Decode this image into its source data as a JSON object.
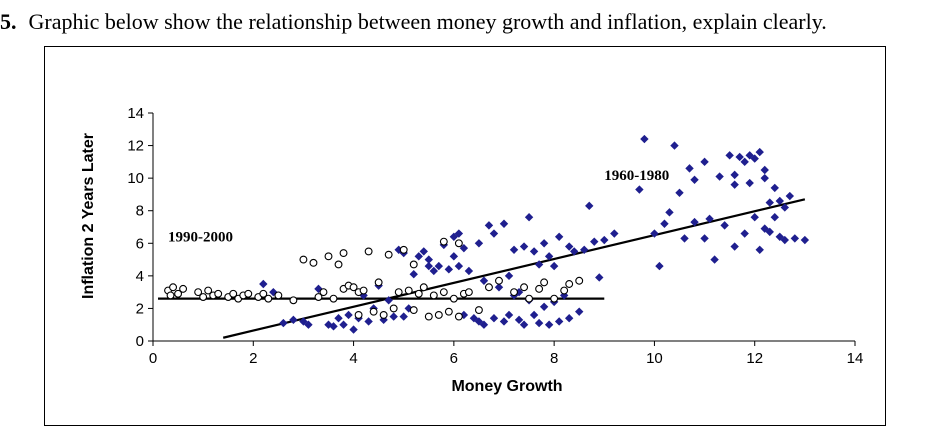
{
  "question": {
    "number": "5.",
    "text": "Graphic below show the relationship between money growth and inflation, explain clearly."
  },
  "chart_data": {
    "type": "scatter",
    "xlabel": "Money Growth",
    "ylabel": "Inflation 2 Years Later",
    "xlim": [
      0,
      14
    ],
    "ylim": [
      0,
      14
    ],
    "xticks": [
      0,
      2,
      4,
      6,
      8,
      10,
      12,
      14
    ],
    "yticks": [
      0,
      2,
      4,
      6,
      8,
      10,
      12,
      14
    ],
    "grid": false,
    "colors": {
      "series_1960_1980": "#1f1f8f",
      "series_1990_2000_fill": "#ffffff",
      "series_1990_2000_stroke": "#000000",
      "trend": "#000000"
    },
    "annotations": [
      {
        "text": "1990-2000",
        "x": 0.3,
        "y": 6.1
      },
      {
        "text": "1960-1980",
        "x": 9.0,
        "y": 9.9
      }
    ],
    "series": [
      {
        "marker": "diamond",
        "points": [
          [
            2.2,
            3.5
          ],
          [
            2.4,
            3.0
          ],
          [
            2.6,
            1.1
          ],
          [
            2.8,
            1.3
          ],
          [
            3.0,
            1.2
          ],
          [
            3.1,
            1.0
          ],
          [
            3.3,
            3.2
          ],
          [
            3.5,
            1.0
          ],
          [
            3.6,
            0.9
          ],
          [
            3.7,
            1.4
          ],
          [
            3.8,
            1.0
          ],
          [
            3.9,
            1.6
          ],
          [
            4.0,
            0.7
          ],
          [
            4.1,
            1.4
          ],
          [
            4.2,
            2.8
          ],
          [
            4.3,
            1.2
          ],
          [
            4.4,
            2.0
          ],
          [
            4.5,
            3.4
          ],
          [
            4.6,
            1.3
          ],
          [
            4.7,
            2.5
          ],
          [
            4.8,
            1.5
          ],
          [
            4.9,
            5.6
          ],
          [
            5.0,
            5.4
          ],
          [
            5.0,
            1.5
          ],
          [
            5.1,
            2.0
          ],
          [
            5.2,
            4.1
          ],
          [
            5.3,
            5.2
          ],
          [
            5.4,
            5.5
          ],
          [
            5.5,
            5.0
          ],
          [
            5.5,
            4.6
          ],
          [
            5.6,
            4.3
          ],
          [
            5.7,
            4.6
          ],
          [
            5.8,
            5.9
          ],
          [
            5.9,
            4.4
          ],
          [
            6.0,
            6.4
          ],
          [
            6.0,
            5.2
          ],
          [
            6.1,
            4.6
          ],
          [
            6.1,
            6.6
          ],
          [
            6.2,
            5.7
          ],
          [
            6.2,
            1.6
          ],
          [
            6.3,
            4.3
          ],
          [
            6.4,
            1.4
          ],
          [
            6.5,
            6.0
          ],
          [
            6.5,
            1.2
          ],
          [
            6.6,
            3.7
          ],
          [
            6.6,
            1.0
          ],
          [
            6.7,
            7.1
          ],
          [
            6.8,
            6.6
          ],
          [
            6.8,
            1.4
          ],
          [
            6.9,
            3.3
          ],
          [
            7.0,
            7.2
          ],
          [
            7.0,
            1.2
          ],
          [
            7.1,
            4.0
          ],
          [
            7.1,
            1.6
          ],
          [
            7.2,
            5.6
          ],
          [
            7.2,
            2.8
          ],
          [
            7.3,
            3.0
          ],
          [
            7.3,
            1.3
          ],
          [
            7.4,
            5.8
          ],
          [
            7.4,
            1.0
          ],
          [
            7.5,
            7.6
          ],
          [
            7.5,
            2.5
          ],
          [
            7.6,
            5.5
          ],
          [
            7.6,
            1.6
          ],
          [
            7.7,
            4.7
          ],
          [
            7.7,
            1.1
          ],
          [
            7.8,
            6.0
          ],
          [
            7.8,
            2.1
          ],
          [
            7.9,
            5.2
          ],
          [
            7.9,
            1.0
          ],
          [
            8.0,
            2.4
          ],
          [
            8.0,
            4.6
          ],
          [
            8.1,
            6.4
          ],
          [
            8.1,
            1.2
          ],
          [
            8.2,
            2.8
          ],
          [
            8.3,
            5.8
          ],
          [
            8.3,
            1.4
          ],
          [
            8.4,
            5.5
          ],
          [
            8.5,
            1.8
          ],
          [
            8.6,
            5.6
          ],
          [
            8.7,
            8.3
          ],
          [
            8.8,
            6.1
          ],
          [
            8.9,
            3.9
          ],
          [
            9.0,
            6.2
          ],
          [
            9.2,
            6.6
          ],
          [
            9.7,
            9.3
          ],
          [
            9.8,
            12.4
          ],
          [
            10.0,
            6.6
          ],
          [
            10.1,
            4.6
          ],
          [
            10.2,
            7.2
          ],
          [
            10.4,
            12.0
          ],
          [
            10.5,
            9.1
          ],
          [
            10.6,
            6.3
          ],
          [
            10.8,
            7.3
          ],
          [
            10.8,
            9.9
          ],
          [
            11.0,
            6.3
          ],
          [
            11.0,
            11.0
          ],
          [
            11.1,
            7.5
          ],
          [
            11.2,
            5.0
          ],
          [
            11.3,
            10.1
          ],
          [
            11.4,
            7.1
          ],
          [
            11.5,
            11.4
          ],
          [
            11.6,
            5.8
          ],
          [
            11.6,
            9.6
          ],
          [
            11.7,
            11.3
          ],
          [
            11.8,
            6.6
          ],
          [
            11.8,
            11.0
          ],
          [
            11.9,
            11.4
          ],
          [
            12.0,
            11.2
          ],
          [
            12.0,
            7.6
          ],
          [
            12.1,
            11.6
          ],
          [
            12.1,
            5.6
          ],
          [
            12.2,
            10.5
          ],
          [
            12.2,
            10.0
          ],
          [
            12.3,
            8.5
          ],
          [
            12.3,
            6.7
          ],
          [
            12.4,
            9.4
          ],
          [
            12.5,
            6.4
          ],
          [
            12.5,
            8.6
          ],
          [
            12.6,
            8.2
          ],
          [
            12.6,
            6.2
          ],
          [
            12.7,
            8.9
          ],
          [
            12.8,
            6.3
          ],
          [
            13.0,
            6.2
          ],
          [
            12.4,
            7.6
          ],
          [
            11.9,
            9.7
          ],
          [
            12.2,
            6.9
          ],
          [
            10.3,
            7.9
          ],
          [
            10.7,
            10.6
          ],
          [
            11.6,
            10.2
          ]
        ]
      },
      {
        "marker": "circle",
        "points": [
          [
            0.3,
            3.1
          ],
          [
            0.35,
            2.8
          ],
          [
            0.4,
            3.3
          ],
          [
            0.5,
            2.9
          ],
          [
            0.6,
            3.2
          ],
          [
            0.9,
            3.0
          ],
          [
            1.0,
            2.7
          ],
          [
            1.1,
            3.1
          ],
          [
            1.2,
            2.8
          ],
          [
            1.3,
            2.9
          ],
          [
            1.5,
            2.7
          ],
          [
            1.6,
            2.9
          ],
          [
            1.7,
            2.6
          ],
          [
            1.8,
            2.8
          ],
          [
            1.9,
            2.9
          ],
          [
            2.1,
            2.7
          ],
          [
            2.2,
            2.9
          ],
          [
            2.3,
            2.6
          ],
          [
            2.5,
            2.8
          ],
          [
            2.8,
            2.5
          ],
          [
            3.0,
            5.0
          ],
          [
            3.2,
            4.8
          ],
          [
            3.3,
            2.7
          ],
          [
            3.4,
            3.0
          ],
          [
            3.5,
            5.2
          ],
          [
            3.6,
            2.6
          ],
          [
            3.7,
            4.7
          ],
          [
            3.8,
            5.4
          ],
          [
            3.8,
            3.2
          ],
          [
            3.9,
            3.4
          ],
          [
            4.0,
            3.3
          ],
          [
            4.1,
            1.6
          ],
          [
            4.1,
            3.0
          ],
          [
            4.2,
            3.1
          ],
          [
            4.3,
            5.5
          ],
          [
            4.4,
            1.8
          ],
          [
            4.5,
            3.6
          ],
          [
            4.6,
            1.6
          ],
          [
            4.7,
            5.3
          ],
          [
            4.8,
            2.0
          ],
          [
            4.9,
            3.0
          ],
          [
            5.0,
            5.6
          ],
          [
            5.1,
            3.1
          ],
          [
            5.2,
            1.9
          ],
          [
            5.3,
            2.9
          ],
          [
            5.4,
            3.3
          ],
          [
            5.5,
            1.5
          ],
          [
            5.6,
            2.8
          ],
          [
            5.7,
            1.6
          ],
          [
            5.8,
            6.1
          ],
          [
            5.8,
            3.0
          ],
          [
            5.9,
            1.8
          ],
          [
            6.0,
            2.6
          ],
          [
            6.1,
            6.0
          ],
          [
            6.1,
            1.5
          ],
          [
            6.2,
            2.9
          ],
          [
            6.3,
            3.0
          ],
          [
            6.5,
            1.9
          ],
          [
            6.7,
            3.3
          ],
          [
            6.9,
            3.7
          ],
          [
            7.2,
            3.0
          ],
          [
            7.4,
            3.3
          ],
          [
            7.5,
            2.6
          ],
          [
            7.7,
            3.2
          ],
          [
            7.8,
            3.6
          ],
          [
            8.0,
            2.6
          ],
          [
            8.2,
            3.1
          ],
          [
            8.3,
            3.5
          ],
          [
            8.5,
            3.7
          ],
          [
            5.2,
            4.7
          ]
        ]
      }
    ],
    "trend_lines": [
      {
        "x": [
          0.1,
          9.0
        ],
        "y": [
          2.6,
          2.6
        ]
      },
      {
        "x": [
          1.4,
          13.0
        ],
        "y": [
          0.2,
          8.7
        ]
      }
    ]
  }
}
